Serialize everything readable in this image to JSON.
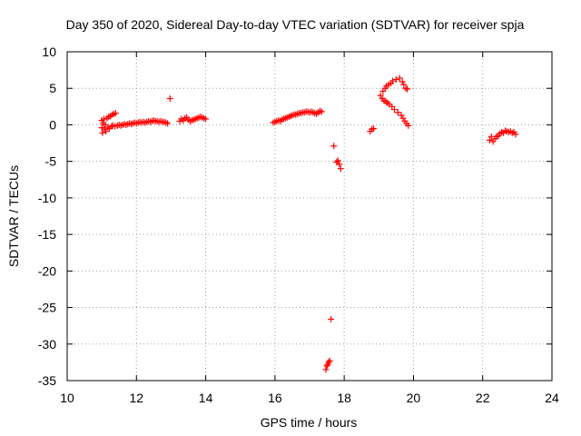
{
  "chart_data": {
    "type": "scatter",
    "title": "Day 350 of 2020, Sidereal Day-to-day VTEC variation (SDTVAR) for receiver spja",
    "xlabel": "GPS time / hours",
    "ylabel": "SDTVAR / TECUs",
    "xlim": [
      10,
      24
    ],
    "ylim": [
      -35,
      10
    ],
    "xticks": [
      10,
      12,
      14,
      16,
      18,
      20,
      22,
      24
    ],
    "yticks": [
      10,
      5,
      0,
      -5,
      -10,
      -15,
      -20,
      -25,
      -30,
      -35
    ],
    "grid": true,
    "marker": "+",
    "color": "#ff0000",
    "series": [
      {
        "name": "spja",
        "points": [
          [
            11.0,
            0.6
          ],
          [
            11.0,
            -0.4
          ],
          [
            11.02,
            -1.1
          ],
          [
            11.04,
            0.2
          ],
          [
            11.06,
            0.8
          ],
          [
            11.08,
            -0.6
          ],
          [
            11.1,
            0.0
          ],
          [
            11.12,
            -0.9
          ],
          [
            11.15,
            0.9
          ],
          [
            11.18,
            -0.3
          ],
          [
            11.2,
            1.1
          ],
          [
            11.22,
            -0.5
          ],
          [
            11.25,
            1.2
          ],
          [
            11.28,
            -0.2
          ],
          [
            11.3,
            1.4
          ],
          [
            11.32,
            -0.1
          ],
          [
            11.35,
            1.5
          ],
          [
            11.38,
            -0.2
          ],
          [
            11.4,
            1.6
          ],
          [
            11.45,
            -0.1
          ],
          [
            11.5,
            0.0
          ],
          [
            11.55,
            -0.1
          ],
          [
            11.6,
            0.0
          ],
          [
            11.65,
            0.1
          ],
          [
            11.7,
            0.0
          ],
          [
            11.75,
            0.1
          ],
          [
            11.8,
            0.2
          ],
          [
            11.85,
            0.1
          ],
          [
            11.9,
            0.2
          ],
          [
            11.95,
            0.3
          ],
          [
            12.0,
            0.2
          ],
          [
            12.05,
            0.3
          ],
          [
            12.1,
            0.4
          ],
          [
            12.15,
            0.3
          ],
          [
            12.2,
            0.4
          ],
          [
            12.25,
            0.3
          ],
          [
            12.3,
            0.4
          ],
          [
            12.35,
            0.5
          ],
          [
            12.4,
            0.4
          ],
          [
            12.45,
            0.5
          ],
          [
            12.5,
            0.6
          ],
          [
            12.55,
            0.5
          ],
          [
            12.6,
            0.5
          ],
          [
            12.65,
            0.4
          ],
          [
            12.7,
            0.5
          ],
          [
            12.75,
            0.4
          ],
          [
            12.8,
            0.4
          ],
          [
            12.85,
            0.3
          ],
          [
            12.9,
            0.2
          ],
          [
            12.97,
            3.6
          ],
          [
            13.25,
            0.5
          ],
          [
            13.3,
            0.8
          ],
          [
            13.35,
            0.6
          ],
          [
            13.4,
            0.9
          ],
          [
            13.45,
            1.0
          ],
          [
            13.5,
            0.7
          ],
          [
            13.55,
            0.5
          ],
          [
            13.6,
            0.6
          ],
          [
            13.65,
            0.7
          ],
          [
            13.7,
            0.8
          ],
          [
            13.75,
            0.9
          ],
          [
            13.8,
            1.0
          ],
          [
            13.85,
            1.1
          ],
          [
            13.9,
            1.0
          ],
          [
            13.95,
            0.9
          ],
          [
            14.0,
            0.8
          ],
          [
            15.95,
            0.3
          ],
          [
            16.0,
            0.4
          ],
          [
            16.05,
            0.5
          ],
          [
            16.1,
            0.6
          ],
          [
            16.15,
            0.5
          ],
          [
            16.2,
            0.7
          ],
          [
            16.25,
            0.8
          ],
          [
            16.3,
            0.9
          ],
          [
            16.35,
            1.0
          ],
          [
            16.4,
            1.1
          ],
          [
            16.45,
            1.2
          ],
          [
            16.5,
            1.3
          ],
          [
            16.55,
            1.4
          ],
          [
            16.6,
            1.4
          ],
          [
            16.65,
            1.5
          ],
          [
            16.7,
            1.6
          ],
          [
            16.75,
            1.6
          ],
          [
            16.8,
            1.7
          ],
          [
            16.85,
            1.7
          ],
          [
            16.9,
            1.8
          ],
          [
            16.95,
            1.8
          ],
          [
            17.0,
            1.7
          ],
          [
            17.05,
            1.8
          ],
          [
            17.1,
            1.7
          ],
          [
            17.15,
            1.6
          ],
          [
            17.2,
            1.5
          ],
          [
            17.25,
            1.7
          ],
          [
            17.3,
            1.9
          ],
          [
            17.35,
            1.8
          ],
          [
            17.47,
            -33.5
          ],
          [
            17.5,
            -33.0
          ],
          [
            17.52,
            -32.8
          ],
          [
            17.55,
            -32.5
          ],
          [
            17.58,
            -32.3
          ],
          [
            17.62,
            -26.6
          ],
          [
            17.7,
            -2.9
          ],
          [
            17.78,
            -5.1
          ],
          [
            17.82,
            -4.9
          ],
          [
            17.86,
            -5.4
          ],
          [
            17.9,
            -6.0
          ],
          [
            18.75,
            -0.9
          ],
          [
            18.8,
            -0.6
          ],
          [
            18.85,
            -0.5
          ],
          [
            19.05,
            4.0
          ],
          [
            19.1,
            3.6
          ],
          [
            19.12,
            4.6
          ],
          [
            19.15,
            3.3
          ],
          [
            19.18,
            5.0
          ],
          [
            19.2,
            3.2
          ],
          [
            19.22,
            5.3
          ],
          [
            19.25,
            3.0
          ],
          [
            19.28,
            5.5
          ],
          [
            19.3,
            2.8
          ],
          [
            19.35,
            5.7
          ],
          [
            19.38,
            2.5
          ],
          [
            19.4,
            6.0
          ],
          [
            19.45,
            2.1
          ],
          [
            19.5,
            6.2
          ],
          [
            19.55,
            1.7
          ],
          [
            19.6,
            6.4
          ],
          [
            19.65,
            1.3
          ],
          [
            19.68,
            5.9
          ],
          [
            19.7,
            0.9
          ],
          [
            19.72,
            5.5
          ],
          [
            19.75,
            0.5
          ],
          [
            19.78,
            5.0
          ],
          [
            19.8,
            0.2
          ],
          [
            19.82,
            4.9
          ],
          [
            19.85,
            -0.1
          ],
          [
            22.2,
            -2.1
          ],
          [
            22.25,
            -1.6
          ],
          [
            22.3,
            -2.3
          ],
          [
            22.35,
            -1.9
          ],
          [
            22.4,
            -1.6
          ],
          [
            22.45,
            -1.5
          ],
          [
            22.5,
            -1.2
          ],
          [
            22.55,
            -1.0
          ],
          [
            22.6,
            -1.1
          ],
          [
            22.65,
            -0.8
          ],
          [
            22.7,
            -0.9
          ],
          [
            22.75,
            -1.0
          ],
          [
            22.8,
            -0.9
          ],
          [
            22.85,
            -1.1
          ],
          [
            22.9,
            -1.0
          ],
          [
            22.95,
            -1.3
          ]
        ]
      }
    ]
  }
}
